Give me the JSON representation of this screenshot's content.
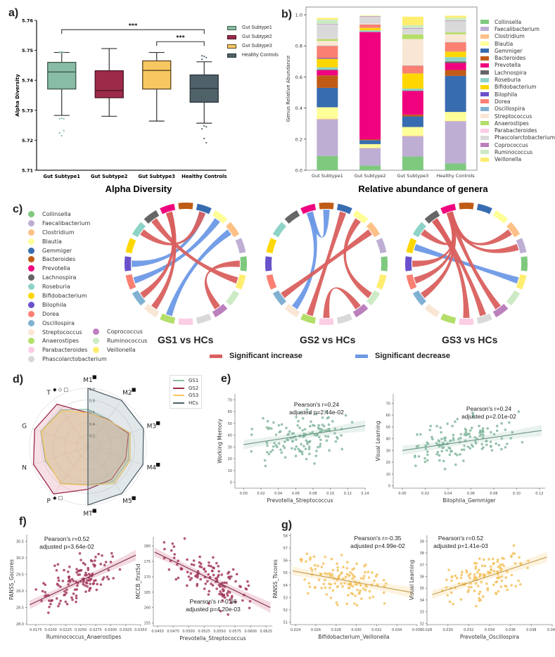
{
  "panels": {
    "a": "a)",
    "b": "b)",
    "c": "c)",
    "d": "d)",
    "e": "e)",
    "f": "f)",
    "g": "g)"
  },
  "colors": {
    "gs1": "#88bca4",
    "gs2": "#9e2a4a",
    "gs3": "#f7c862",
    "hc": "#4f6169",
    "increase": "#d9605e",
    "decrease": "#6d99e6",
    "scatter_e": "#86b9a0",
    "scatter_f": "#a33a5c",
    "scatter_g": "#f5c25e"
  },
  "chart_data": [
    {
      "id": "a",
      "type": "box",
      "title": "Alpha Diversity",
      "ylabel": "Alpha Diversity",
      "ylim": [
        5.71,
        5.76
      ],
      "yticks": [
        "5.71",
        "5.72",
        "5.73",
        "5.74",
        "5.75",
        "5.76"
      ],
      "categories": [
        "Gut Subtype1",
        "Gut Subtype2",
        "Gut Subtype3",
        "Healthy Controls"
      ],
      "legend": [
        "Gut Subtype1",
        "Gut Subtype2",
        "Gut Subtype3",
        "Healthy Controls"
      ],
      "boxes": [
        {
          "whisker_low": 5.7283,
          "q1": 5.7371,
          "median": 5.7428,
          "q3": 5.746,
          "whisker_high": 5.7493,
          "outliers": [
            5.7493,
            5.7493,
            5.7494,
            5.7494,
            5.7495,
            5.7272,
            5.7272,
            5.7273,
            5.7232,
            5.7225,
            5.7215
          ]
        },
        {
          "whisker_low": 5.728,
          "q1": 5.7342,
          "median": 5.7366,
          "q3": 5.7432,
          "whisker_high": 5.7506,
          "outliers": []
        },
        {
          "whisker_low": 5.7264,
          "q1": 5.7371,
          "median": 5.7433,
          "q3": 5.7465,
          "whisker_high": 5.7493,
          "outliers": []
        },
        {
          "whisker_low": 5.7257,
          "q1": 5.7327,
          "median": 5.7373,
          "q3": 5.7418,
          "whisker_high": 5.7462,
          "outliers": [
            5.7482,
            5.748,
            5.7476,
            5.747,
            5.7248,
            5.7245,
            5.7238,
            5.7206,
            5.7192
          ]
        }
      ],
      "significance": [
        {
          "from": 0,
          "to": 3,
          "label": "***",
          "y": 5.7569
        },
        {
          "from": 2,
          "to": 3,
          "label": "***",
          "y": 5.7529
        }
      ]
    },
    {
      "id": "b",
      "type": "stacked-bar",
      "title": "Relative abundance of genera",
      "ylabel": "Genus Relative Abundance",
      "ylim": [
        0,
        1.0
      ],
      "yticks": [
        "0.0",
        "0.2",
        "0.4",
        "0.6",
        "0.8",
        "1.0"
      ],
      "categories": [
        "Gut Subtype1",
        "Gut Subtype2",
        "Gut Subtype3",
        "Healthy Controls"
      ],
      "series": [
        {
          "name": "Collinsella",
          "color": "#7fc97f",
          "values": [
            0.092,
            0.03,
            0.088,
            0.043
          ]
        },
        {
          "name": "Faecalibacterium",
          "color": "#beaed4",
          "values": [
            0.235,
            0.112,
            0.13,
            0.272
          ]
        },
        {
          "name": "Clostridium",
          "color": "#fdc086",
          "values": [
            0.005,
            0.002,
            0.005,
            0.002
          ]
        },
        {
          "name": "Blautia",
          "color": "#ffff99",
          "values": [
            0.073,
            0.024,
            0.055,
            0.058
          ]
        },
        {
          "name": "Gemmiger",
          "color": "#386cb0",
          "values": [
            0.125,
            0.025,
            0.068,
            0.232
          ]
        },
        {
          "name": "Bacteroides",
          "color": "#bf5b17",
          "values": [
            0.08,
            0.006,
            0.012,
            0.038
          ]
        },
        {
          "name": "Prevotella",
          "color": "#f0027f",
          "values": [
            0.034,
            0.69,
            0.152,
            0.045
          ]
        },
        {
          "name": "Lachnospira",
          "color": "#666666",
          "values": [
            0.004,
            0.001,
            0.003,
            0.01
          ]
        },
        {
          "name": "Roseburia",
          "color": "#8dd3c7",
          "values": [
            0.014,
            0.01,
            0.012,
            0.028
          ]
        },
        {
          "name": "Bifidobacterium",
          "color": "#ffd700",
          "values": [
            0.055,
            0.016,
            0.098,
            0.036
          ]
        },
        {
          "name": "Bilophila",
          "color": "#6a51cc",
          "values": [
            0.005,
            0.001,
            0.001,
            0.001
          ]
        },
        {
          "name": "Dorea",
          "color": "#fb8072",
          "values": [
            0.078,
            0.02,
            0.048,
            0.058
          ]
        },
        {
          "name": "Oscillospira",
          "color": "#80b1d3",
          "values": [
            0.002,
            0.001,
            0.002,
            0.002
          ]
        },
        {
          "name": "Streptococcus",
          "color": "#f9e6d4",
          "values": [
            0.03,
            0.002,
            0.17,
            0.05
          ]
        },
        {
          "name": "Anaerostipes",
          "color": "#b3de69",
          "values": [
            0.012,
            0.001,
            0.03,
            0.012
          ]
        },
        {
          "name": "Parabacteroides",
          "color": "#fccde5",
          "values": [
            0.004,
            0.004,
            0.002,
            0.002
          ]
        },
        {
          "name": "Phascolarctobacterium",
          "color": "#d9d9d9",
          "values": [
            0.09,
            0.043,
            0.035,
            0.07
          ]
        },
        {
          "name": "Coprococcus",
          "color": "#bc80bd",
          "values": [
            0.003,
            0.003,
            0.004,
            0.004
          ]
        },
        {
          "name": "Ruminococcus",
          "color": "#ccebc5",
          "values": [
            0.028,
            0.002,
            0.018,
            0.018
          ]
        },
        {
          "name": "Veillonella",
          "color": "#ffed6f",
          "values": [
            0.011,
            0.003,
            0.055,
            0.013
          ]
        }
      ]
    },
    {
      "id": "c",
      "type": "chord",
      "legend_title": "",
      "genera_order": [
        "Collinsella",
        "Faecalibacterium",
        "Clostridium",
        "Blautia",
        "Gemmiger",
        "Bacteroides",
        "Prevotella",
        "Lachnospira",
        "Roseburia",
        "Bifidobacterium",
        "Bilophila",
        "Dorea",
        "Oscillospira",
        "Streptococcus",
        "Anaerostipes",
        "Parabacteroides",
        "Phascolarctobacterium",
        "Coprococcus",
        "Ruminococcus",
        "Veillonella"
      ],
      "diagrams": [
        {
          "title": "GS1 vs HCs",
          "links": [
            {
              "a": "Gemmiger",
              "b": "Bilophila",
              "type": "decrease"
            },
            {
              "a": "Blautia",
              "b": "Dorea",
              "type": "decrease"
            },
            {
              "a": "Clostridium",
              "b": "Anaerostipes",
              "type": "decrease"
            },
            {
              "a": "Prevotella",
              "b": "Streptococcus",
              "type": "increase"
            },
            {
              "a": "Lachnospira",
              "b": "Veillonella",
              "type": "increase"
            },
            {
              "a": "Roseburia",
              "b": "Gemmiger",
              "type": "increase"
            },
            {
              "a": "Collinsella",
              "b": "Coprococcus",
              "type": "increase"
            },
            {
              "a": "Prevotella",
              "b": "Oscillospira",
              "type": "increase"
            }
          ]
        },
        {
          "title": "GS2 vs HCs",
          "links": [
            {
              "a": "Prevotella",
              "b": "Streptococcus",
              "type": "decrease"
            },
            {
              "a": "Bacteroides",
              "b": "Prevotella",
              "type": "decrease"
            },
            {
              "a": "Gemmiger",
              "b": "Anaerostipes",
              "type": "increase"
            },
            {
              "a": "Clostridium",
              "b": "Oscillospira",
              "type": "increase"
            },
            {
              "a": "Blautia",
              "b": "Ruminococcus",
              "type": "increase"
            },
            {
              "a": "Parabacteroides",
              "b": "Coprococcus",
              "type": "increase"
            }
          ]
        },
        {
          "title": "GS3 vs HCs",
          "links": [
            {
              "a": "Bifidobacterium",
              "b": "Veillonella",
              "type": "decrease"
            },
            {
              "a": "Prevotella",
              "b": "Clostridium",
              "type": "increase"
            },
            {
              "a": "Prevotella",
              "b": "Faecalibacterium",
              "type": "increase"
            },
            {
              "a": "Prevotella",
              "b": "Roseburia",
              "type": "increase"
            },
            {
              "a": "Prevotella",
              "b": "Bilophila",
              "type": "increase"
            },
            {
              "a": "Prevotella",
              "b": "Dorea",
              "type": "increase"
            },
            {
              "a": "Prevotella",
              "b": "Oscillospira",
              "type": "increase"
            },
            {
              "a": "Prevotella",
              "b": "Coprococcus",
              "type": "increase"
            },
            {
              "a": "Lachnospira",
              "b": "Phascolarctobacterium",
              "type": "increase"
            },
            {
              "a": "Lachnospira",
              "b": "Parabacteroides",
              "type": "increase"
            }
          ]
        }
      ],
      "legend_increase": "Significant increase",
      "legend_decrease": "Significant decrease"
    },
    {
      "id": "d",
      "type": "radar",
      "axes": [
        "M1",
        "M2",
        "M3",
        "M4",
        "M5",
        "MT",
        "P",
        "N",
        "G",
        "T"
      ],
      "axis_markers": {
        "M1": "■",
        "M2": "■",
        "M3": "■",
        "M4": "■",
        "M5": "■",
        "MT": "■",
        "P": "◆ □",
        "T": "◆ ◇ □"
      },
      "rticks": [
        "0.2",
        "0.4",
        "0.6",
        "0.8",
        "1.0"
      ],
      "rlim": [
        0,
        1.0
      ],
      "series": [
        {
          "name": "GS1",
          "values": [
            0.64,
            0.58,
            0.73,
            0.73,
            0.74,
            0.65,
            0.78,
            0.77,
            0.85,
            0.78
          ]
        },
        {
          "name": "GS2",
          "values": [
            0.58,
            0.58,
            0.73,
            0.68,
            0.69,
            0.73,
            1.0,
            0.98,
            0.96,
            0.9
          ]
        },
        {
          "name": "GS3",
          "values": [
            0.58,
            0.57,
            0.76,
            0.76,
            0.78,
            0.66,
            0.79,
            0.75,
            0.84,
            0.76
          ]
        },
        {
          "name": "HCs",
          "values": [
            1.0,
            0.98,
            1.0,
            0.99,
            0.99,
            1.0,
            0.0,
            0.0,
            0.0,
            0.0
          ]
        }
      ]
    },
    {
      "id": "e1",
      "type": "scatter",
      "xlabel": "Prevotella_Streptococcus",
      "ylabel": "Working Memory",
      "xlim": [
        -0.01,
        0.14
      ],
      "ylim": [
        -5,
        75
      ],
      "xticks": [
        "0.00",
        "0.02",
        "0.04",
        "0.06",
        "0.08",
        "0.10",
        "0.12",
        "0.14"
      ],
      "yticks": [
        "0",
        "10",
        "20",
        "30",
        "40",
        "50",
        "60",
        "70"
      ],
      "annotation": {
        "line1": "Pearson's r=0.24",
        "line2": "adjusted p=2.44e-02"
      },
      "fit": {
        "x0": 0.0,
        "y0": 32,
        "x1": 0.14,
        "y1": 48
      },
      "n_points": 140,
      "seed": 11
    },
    {
      "id": "e2",
      "type": "scatter",
      "xlabel": "Bilophila_Gemmiger",
      "ylabel": "Visual Learning",
      "xlim": [
        -0.008,
        0.125
      ],
      "ylim": [
        -2,
        78
      ],
      "xticks": [
        "0.00",
        "0.02",
        "0.04",
        "0.06",
        "0.08",
        "0.10",
        "0.12"
      ],
      "yticks": [
        "0",
        "10",
        "20",
        "30",
        "40",
        "50",
        "60",
        "70"
      ],
      "annotation": {
        "line1": "Pearson's r=0.24",
        "line2": "adjusted p=2.01e-02"
      },
      "fit": {
        "x0": 0.0,
        "y0": 30,
        "x1": 0.122,
        "y1": 47
      },
      "n_points": 140,
      "seed": 23
    },
    {
      "id": "f1",
      "type": "scatter",
      "xlabel": "Ruminococcus_Anaerostipes",
      "ylabel": "PANSS_Gscores",
      "xlim": [
        0.016,
        0.035
      ],
      "ylim": [
        27.98,
        30.7
      ],
      "xticks": [
        "0.0175",
        "0.0200",
        "0.0225",
        "0.0250",
        "0.0275",
        "0.0300",
        "0.0325",
        "0.0350"
      ],
      "yticks": [
        "28.0",
        "28.5",
        "29.0",
        "29.5",
        "30.0",
        "30.5"
      ],
      "annotation": {
        "line1": "Pearson's r=0.52",
        "line2": "adjusted p=3.64e-02"
      },
      "fit": {
        "x0": 0.0165,
        "y0": 28.58,
        "x1": 0.0342,
        "y1": 30.08
      },
      "n_points": 130,
      "seed": 5
    },
    {
      "id": "f2",
      "type": "scatter",
      "xlabel": "Prevotella_Streptococcus",
      "ylabel": "MCCB_first5d",
      "xlim": [
        0.0443,
        0.0635
      ],
      "ylim": [
        154,
        183
      ],
      "xticks": [
        "0.0450",
        "0.0475",
        "0.0500",
        "0.0525",
        "0.0550",
        "0.0575",
        "0.0600",
        "0.0625"
      ],
      "yticks": [
        "155",
        "160",
        "165",
        "170",
        "175",
        "180"
      ],
      "annotation": {
        "line1": "Pearson's r=-0.66",
        "line2": "adjusted p=4.20e-03"
      },
      "fit": {
        "x0": 0.0445,
        "y0": 178,
        "x1": 0.0632,
        "y1": 160
      },
      "n_points": 130,
      "seed": 41
    },
    {
      "id": "g1",
      "type": "scatter",
      "xlabel": "Bifidobacterium_Veillonella",
      "ylabel": "PANSS_Tscores",
      "xlim": [
        0.0235,
        0.036
      ],
      "ylim": [
        50.8,
        58.2
      ],
      "xticks": [
        "0.024",
        "0.026",
        "0.028",
        "0.030",
        "0.032",
        "0.034",
        "0.036"
      ],
      "yticks": [
        "51",
        "52",
        "53",
        "54",
        "55",
        "56",
        "57",
        "58"
      ],
      "annotation": {
        "line1": "Pearson's r=-0.35",
        "line2": "adjusted p=4.99e-02"
      },
      "fit": {
        "x0": 0.0237,
        "y0": 55.15,
        "x1": 0.0355,
        "y1": 53.4
      },
      "n_points": 130,
      "seed": 77
    },
    {
      "id": "g2",
      "type": "scatter",
      "xlabel": "Prevotella_Oscillospira",
      "ylabel": "Visual Learning",
      "xlim": [
        0.028,
        0.04
      ],
      "ylim": [
        31.9,
        39.5
      ],
      "xticks": [
        "0.028",
        "0.030",
        "0.032",
        "0.034",
        "0.036",
        "0.038",
        "0.040"
      ],
      "yticks": [
        "32",
        "33",
        "34",
        "35",
        "36",
        "37",
        "38",
        "39"
      ],
      "annotation": {
        "line1": "Pearson's r=0.52",
        "line2": "adjusted p=1.41e-03"
      },
      "fit": {
        "x0": 0.0285,
        "y0": 34.45,
        "x1": 0.0395,
        "y1": 37.65
      },
      "n_points": 130,
      "seed": 91
    }
  ]
}
